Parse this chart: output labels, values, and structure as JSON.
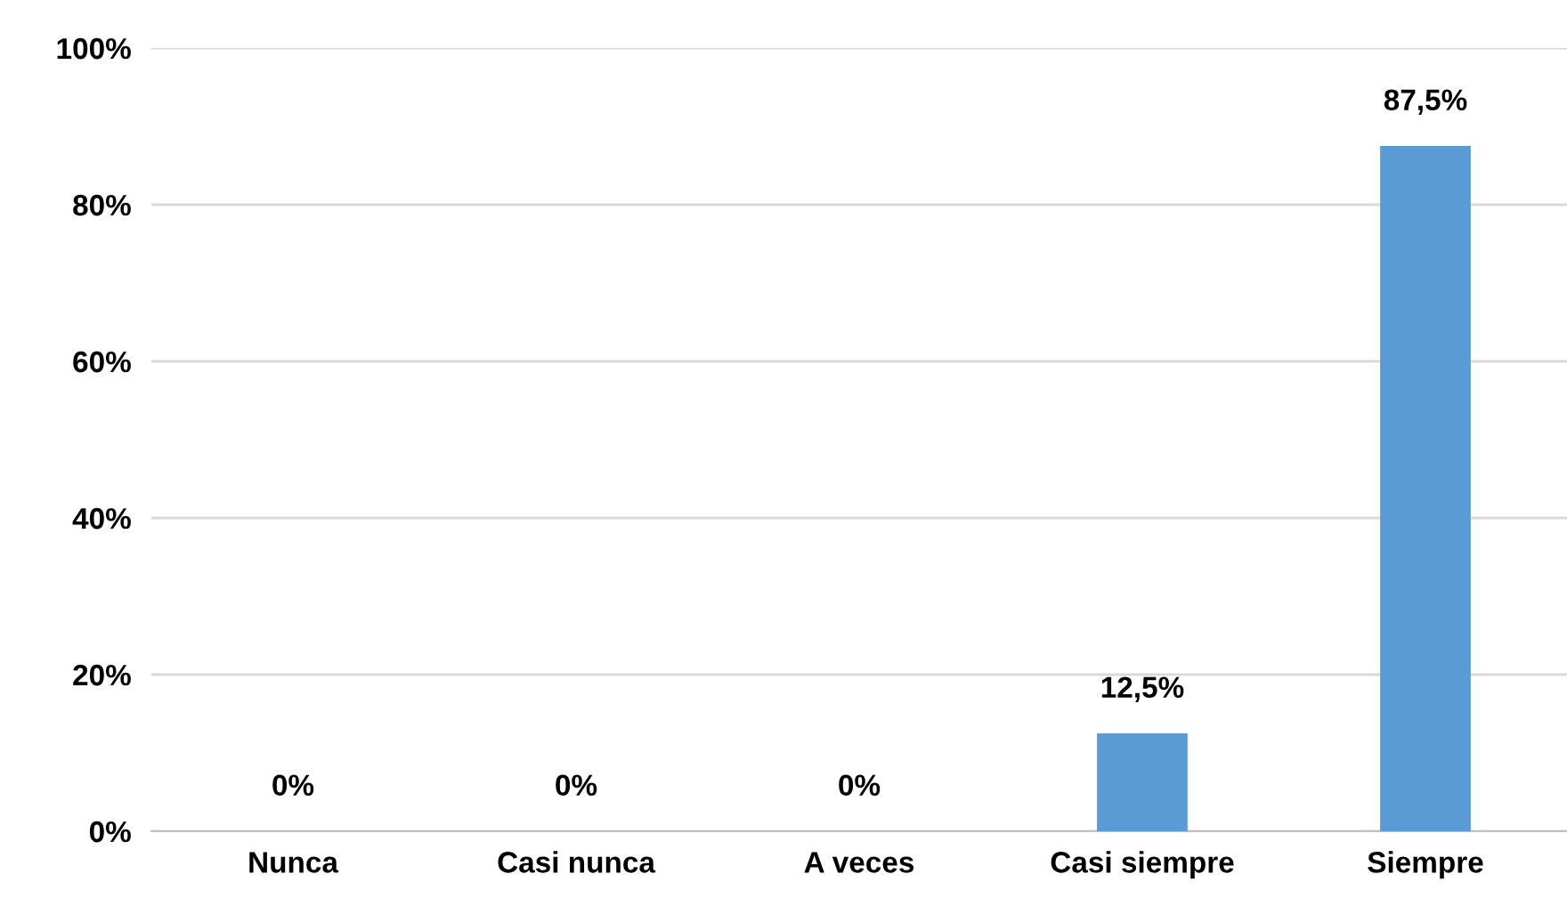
{
  "chart_data": {
    "type": "bar",
    "categories": [
      "Nunca",
      "Casi nunca",
      "A veces",
      "Casi siempre",
      "Siempre"
    ],
    "values": [
      0,
      0,
      0,
      12.5,
      87.5
    ],
    "value_labels": [
      "0%",
      "0%",
      "0%",
      "12,5%",
      "87,5%"
    ],
    "color": "#5b9bd5",
    "ylim": [
      0,
      100
    ],
    "yticks": [
      {
        "value": 0,
        "label": "0%"
      },
      {
        "value": 20,
        "label": "20%"
      },
      {
        "value": 40,
        "label": "40%"
      },
      {
        "value": 60,
        "label": "60%"
      },
      {
        "value": 80,
        "label": "80%"
      },
      {
        "value": 100,
        "label": "100%"
      }
    ],
    "grid": "y",
    "legend": false
  }
}
